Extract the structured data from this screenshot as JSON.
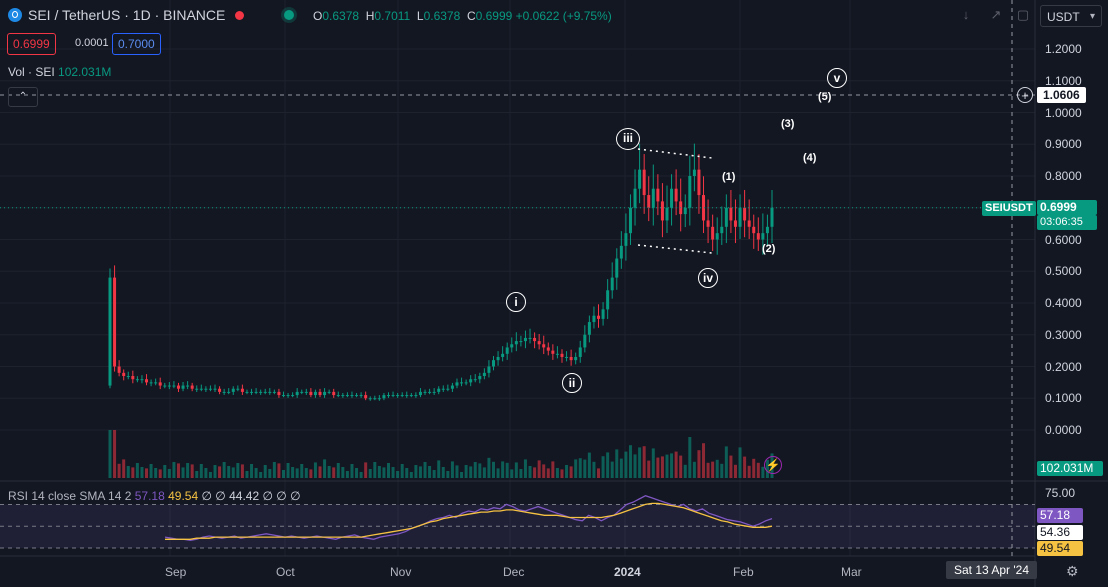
{
  "header": {
    "symbol_title": "SEI / TetherUS · 1D · BINANCE",
    "ohlc": [
      {
        "label": "O",
        "value": "0.6378"
      },
      {
        "label": "H",
        "value": "0.7011"
      },
      {
        "label": "L",
        "value": "0.6378"
      },
      {
        "label": "C",
        "value": "0.6999"
      }
    ],
    "change": "+0.0622 (+9.75%)",
    "sell_price": "0.6999",
    "spread": "0.0001",
    "buy_price": "0.7000",
    "currency": "USDT",
    "toolbar_icons": [
      "download-arrow-icon",
      "fullscreen-icon",
      "snapshot-icon"
    ]
  },
  "volume": {
    "label": "Vol · SEI",
    "value": "102.031M",
    "badge": "102.031M"
  },
  "rsi": {
    "label": "RSI 14 close SMA 14 2",
    "rsi_value": "57.18",
    "sma_value": "49.54",
    "z1": "∅",
    "z2": "∅",
    "mid_value": "44.42",
    "z3": "∅",
    "z4": "∅",
    "z5": "∅",
    "axis_top": "75.00",
    "badge_rsi": "57.18",
    "badge_mid": "54.36",
    "badge_sma": "49.54"
  },
  "price_axis": [
    "1.2000",
    "1.1000",
    "1.0000",
    "0.9000",
    "0.8000",
    "0.7000",
    "0.6000",
    "0.5000",
    "0.4000",
    "0.3000",
    "0.2000",
    "0.1000",
    "0.0000"
  ],
  "crosshair_price": "1.0606",
  "last_price_tag": {
    "symbol": "SEIUSDT",
    "price": "0.6999",
    "countdown": "03:06:35"
  },
  "time_axis": [
    "Sep",
    "Oct",
    "Nov",
    "Dec",
    "2024",
    "Feb",
    "Mar"
  ],
  "crosshair_date": "Sat 13 Apr '24",
  "waves": {
    "major": [
      "i",
      "ii",
      "iii",
      "iv",
      "v"
    ],
    "minor": [
      "(1)",
      "(2)",
      "(3)",
      "(4)",
      "(5)"
    ]
  },
  "colors": {
    "up": "#089981",
    "down": "#f23645",
    "rsi": "#7e57c2",
    "sma": "#f5c242",
    "bg": "#131722"
  },
  "chart_data": {
    "type": "candlestick",
    "y_range": [
      0.0,
      1.2
    ],
    "closes": [
      0.48,
      0.2,
      0.18,
      0.17,
      0.17,
      0.16,
      0.16,
      0.16,
      0.15,
      0.15,
      0.15,
      0.14,
      0.14,
      0.14,
      0.14,
      0.13,
      0.14,
      0.14,
      0.13,
      0.13,
      0.13,
      0.13,
      0.13,
      0.13,
      0.12,
      0.12,
      0.12,
      0.13,
      0.13,
      0.12,
      0.12,
      0.12,
      0.12,
      0.12,
      0.12,
      0.12,
      0.12,
      0.11,
      0.11,
      0.11,
      0.11,
      0.12,
      0.12,
      0.12,
      0.11,
      0.12,
      0.11,
      0.12,
      0.12,
      0.11,
      0.11,
      0.11,
      0.11,
      0.11,
      0.11,
      0.11,
      0.1,
      0.1,
      0.1,
      0.1,
      0.11,
      0.11,
      0.11,
      0.11,
      0.11,
      0.11,
      0.11,
      0.11,
      0.12,
      0.12,
      0.12,
      0.12,
      0.13,
      0.13,
      0.13,
      0.14,
      0.15,
      0.15,
      0.15,
      0.16,
      0.16,
      0.17,
      0.18,
      0.2,
      0.22,
      0.23,
      0.24,
      0.26,
      0.27,
      0.28,
      0.28,
      0.29,
      0.29,
      0.28,
      0.27,
      0.26,
      0.25,
      0.24,
      0.24,
      0.23,
      0.23,
      0.22,
      0.23,
      0.26,
      0.3,
      0.34,
      0.36,
      0.35,
      0.38,
      0.44,
      0.48,
      0.54,
      0.58,
      0.62,
      0.7,
      0.76,
      0.82,
      0.74,
      0.7,
      0.76,
      0.72,
      0.66,
      0.7,
      0.76,
      0.72,
      0.68,
      0.7,
      0.8,
      0.82,
      0.74,
      0.66,
      0.64,
      0.6,
      0.62,
      0.64,
      0.7,
      0.66,
      0.64,
      0.7,
      0.66,
      0.64,
      0.62,
      0.6,
      0.62,
      0.64,
      0.7
    ],
    "rsi_values": [
      40,
      39,
      38,
      38,
      37,
      38,
      40,
      41,
      40,
      39,
      40,
      41,
      39,
      40,
      41,
      42,
      43,
      42,
      41,
      40,
      41,
      40,
      39,
      40,
      41,
      40,
      39,
      38,
      40,
      41,
      42,
      40,
      39,
      38,
      40,
      41,
      42,
      43,
      45,
      48,
      50,
      52,
      55,
      57,
      58,
      60,
      58,
      62,
      64,
      63,
      66,
      65,
      67,
      66,
      70,
      68,
      65,
      64,
      66,
      68,
      66,
      64,
      62,
      60,
      58,
      56,
      55,
      60,
      58,
      55,
      58,
      60,
      65,
      70,
      72,
      75,
      78,
      76,
      74,
      72,
      70,
      68,
      70,
      66,
      64,
      66,
      62,
      60,
      58,
      56,
      55,
      54,
      52,
      50,
      52,
      55,
      57
    ],
    "sma_values": [
      38,
      38,
      38,
      38,
      38,
      39,
      39,
      39,
      40,
      40,
      40,
      40,
      40,
      40,
      40,
      40,
      40,
      40,
      40,
      40,
      40,
      40,
      40,
      40,
      40,
      40,
      40,
      40,
      40,
      40,
      40,
      40,
      41,
      42,
      43,
      44,
      45,
      46,
      47,
      48,
      50,
      52,
      54,
      55,
      57,
      58,
      59,
      60,
      61,
      62,
      63,
      63,
      64,
      64,
      65,
      65,
      64,
      63,
      62,
      61,
      60,
      60,
      60,
      59,
      58,
      58,
      58,
      58,
      58,
      58,
      59,
      60,
      62,
      64,
      66,
      68,
      70,
      71,
      71,
      70,
      69,
      68,
      67,
      65,
      63,
      61,
      59,
      57,
      55,
      54,
      52,
      51,
      50,
      49,
      49,
      49,
      50
    ]
  }
}
